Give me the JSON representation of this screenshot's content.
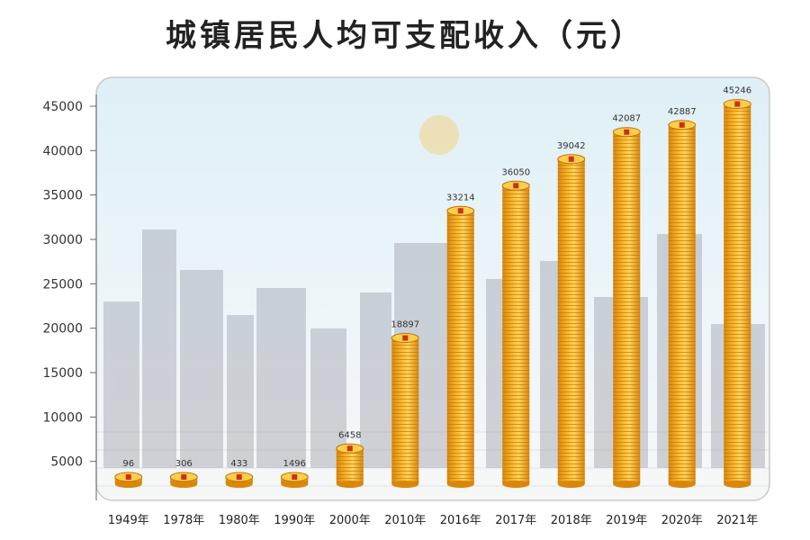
{
  "chart_data": {
    "type": "bar",
    "title": "城镇居民人均可支配收入（元）",
    "categories": [
      "1949年",
      "1978年",
      "1980年",
      "1990年",
      "2000年",
      "2010年",
      "2016年",
      "2017年",
      "2018年",
      "2019年",
      "2020年",
      "2021年"
    ],
    "values": [
      96,
      306,
      433,
      1496,
      6458,
      18897,
      33214,
      36050,
      39042,
      42087,
      42887,
      45246
    ],
    "ylim": [
      0,
      45000
    ],
    "yticks": [
      "5000",
      "10000",
      "15000",
      "20000",
      "25000",
      "30000",
      "35000",
      "40000",
      "45000"
    ],
    "grid": false,
    "bar_color": "#F2A51A"
  }
}
